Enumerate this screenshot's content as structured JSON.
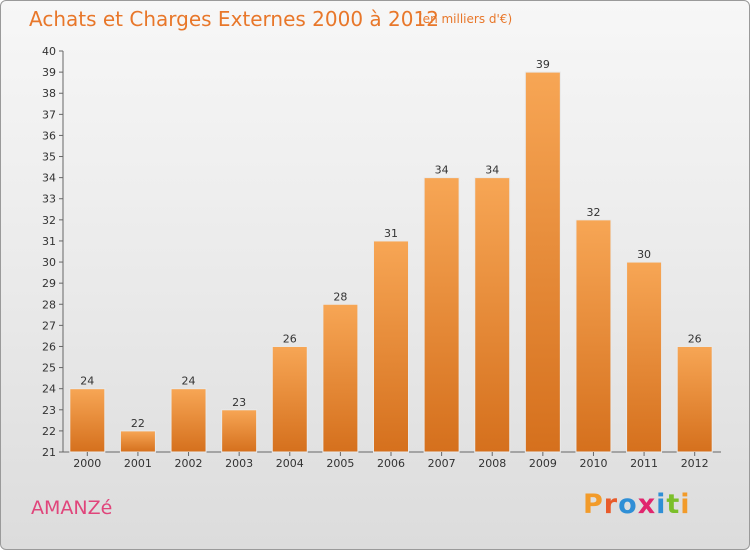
{
  "header": {
    "title": "Achats et Charges Externes 2000 à 2012",
    "unit": "(en milliers d'€)"
  },
  "footer": {
    "commune": "AMANZé",
    "brand": "Proxiti"
  },
  "colors": {
    "bar_top": "#f7a655",
    "bar_bottom": "#d5701d",
    "title": "#e8772a",
    "commune": "#e0457b",
    "logo_letters": [
      "#f29b2a",
      "#e85b2a",
      "#2f8fd6",
      "#e1266e",
      "#2f8fd6",
      "#7bbf2a",
      "#f29b2a"
    ]
  },
  "chart_data": {
    "type": "bar",
    "title": "Achats et Charges Externes 2000 à 2012",
    "subtitle": "(en milliers d'€)",
    "categories": [
      "2000",
      "2001",
      "2002",
      "2003",
      "2004",
      "2005",
      "2006",
      "2007",
      "2008",
      "2009",
      "2010",
      "2011",
      "2012"
    ],
    "values": [
      24,
      22,
      24,
      23,
      26,
      28,
      31,
      34,
      34,
      39,
      32,
      30,
      26
    ],
    "ylim": [
      21,
      40
    ],
    "yticks": [
      21,
      22,
      23,
      24,
      25,
      26,
      27,
      28,
      29,
      30,
      31,
      32,
      33,
      34,
      35,
      36,
      37,
      38,
      39,
      40
    ],
    "grid": false,
    "data_labels": true
  }
}
